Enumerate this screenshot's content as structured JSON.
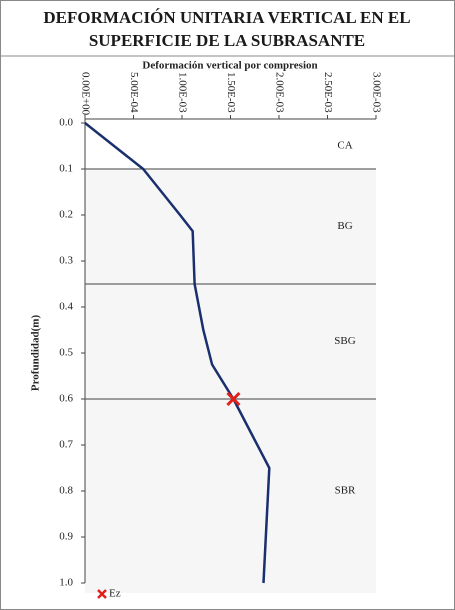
{
  "chart_data": {
    "type": "line",
    "title_lines": [
      "DEFORMACIÓN UNITARIA VERTICAL EN EL",
      "SUPERFICIE DE LA SUBRASANTE"
    ],
    "xlabel": "Deformación vertical por compresion",
    "ylabel": "Profundidad(m)",
    "xlim": [
      0,
      0.003
    ],
    "ylim": [
      0,
      1
    ],
    "y_inverted": true,
    "xticks": [
      {
        "value": 0,
        "label": "0.00E+00"
      },
      {
        "value": 0.0005,
        "label": "5.00E-04"
      },
      {
        "value": 0.001,
        "label": "1.00E-03"
      },
      {
        "value": 0.0015,
        "label": "1.50E-03"
      },
      {
        "value": 0.002,
        "label": "2.00E-03"
      },
      {
        "value": 0.0025,
        "label": "2.50E-03"
      },
      {
        "value": 0.003,
        "label": "3.00E-03"
      }
    ],
    "yticks": [
      {
        "value": 0,
        "label": "0.0"
      },
      0.1,
      0.2,
      0.3,
      0.4,
      0.5,
      0.6,
      0.7,
      0.8,
      0.9,
      {
        "value": 1,
        "label": "1.0"
      }
    ],
    "series": [
      {
        "color": "#1a2f6e",
        "x": [
          0,
          0.0006,
          0.00098,
          0.00111,
          0.00113,
          0.00122,
          0.00131,
          0.00153,
          0.0019,
          0.00184
        ],
        "y": [
          0,
          0.1,
          0.2,
          0.235,
          0.35,
          0.45,
          0.525,
          0.6,
          0.75,
          1.0
        ]
      }
    ],
    "points": [
      {
        "name": "Ez",
        "color": "#e0201b",
        "x": 0.00153,
        "y": 0.6
      }
    ],
    "layer_boundaries": [
      0.1,
      0.35,
      0.6
    ],
    "layer_boundary_color": "#666666",
    "layers": [
      "CA",
      "BG",
      "SBG",
      "SBR"
    ],
    "legend": "bottom-left"
  }
}
